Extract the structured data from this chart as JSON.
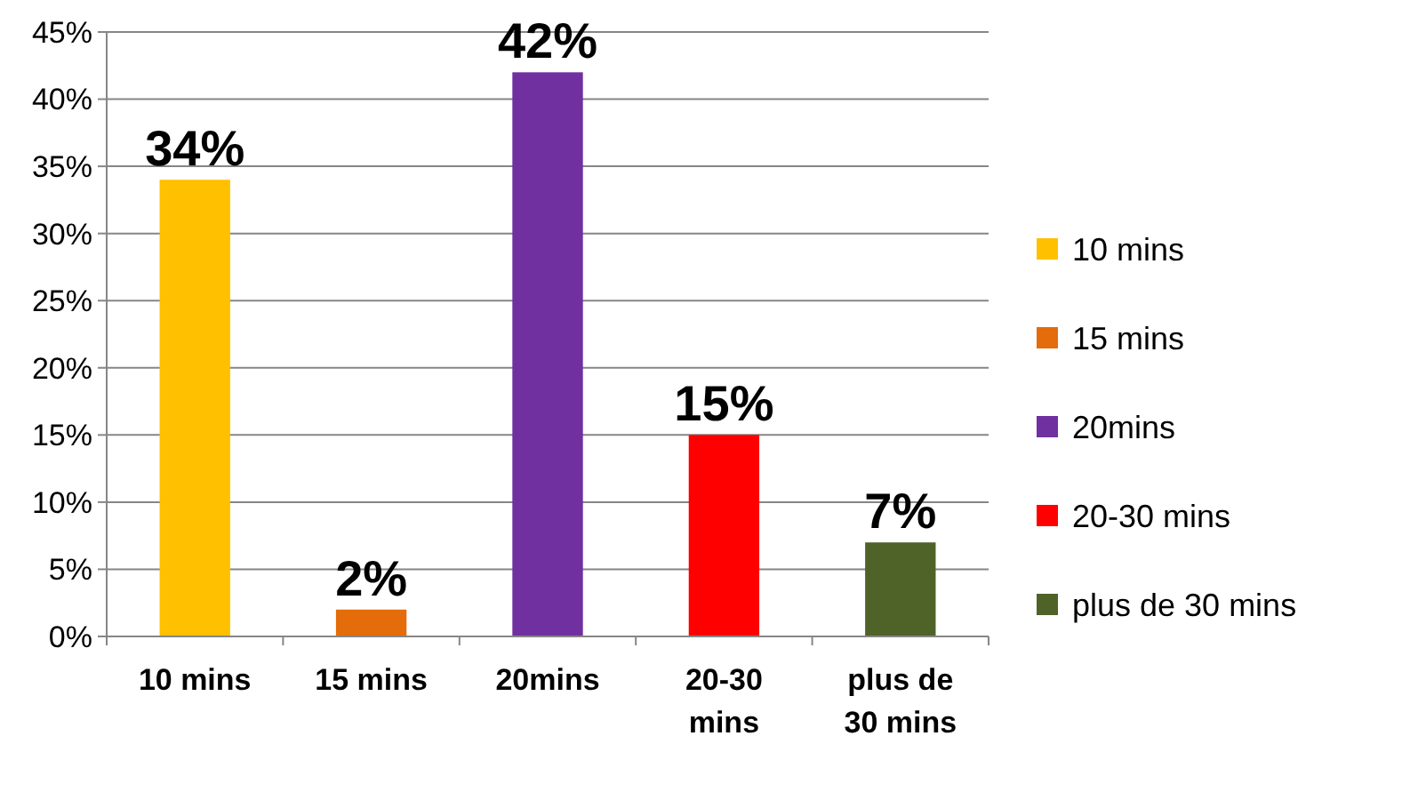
{
  "chart_data": {
    "type": "bar",
    "categories": [
      "10 mins",
      "15 mins",
      "20mins",
      "20-30 mins",
      "plus de 30 mins"
    ],
    "series": [
      {
        "name": "10 mins",
        "color": "#ffc000",
        "values": [
          34,
          null,
          null,
          null,
          null
        ],
        "value_labels": [
          "34%",
          null,
          null,
          null,
          null
        ]
      },
      {
        "name": "15 mins",
        "color": "#e46c0a",
        "values": [
          null,
          2,
          null,
          null,
          null
        ],
        "value_labels": [
          null,
          "2%",
          null,
          null,
          null
        ]
      },
      {
        "name": "20mins",
        "color": "#7030a0",
        "values": [
          null,
          null,
          42,
          null,
          null
        ],
        "value_labels": [
          null,
          null,
          "42%",
          null,
          null
        ]
      },
      {
        "name": "20-30 mins",
        "color": "#ff0000",
        "values": [
          null,
          null,
          null,
          15,
          null
        ],
        "value_labels": [
          null,
          null,
          null,
          "15%",
          null
        ]
      },
      {
        "name": "plus de 30 mins",
        "color": "#4f6228",
        "values": [
          null,
          null,
          null,
          null,
          7
        ],
        "value_labels": [
          null,
          null,
          null,
          null,
          "7%"
        ]
      }
    ],
    "ylim": [
      0,
      45
    ],
    "yticks": [
      {
        "value": 0,
        "label": "0%"
      },
      {
        "value": 5,
        "label": "5%"
      },
      {
        "value": 10,
        "label": "10%"
      },
      {
        "value": 15,
        "label": "15%"
      },
      {
        "value": 20,
        "label": "20%"
      },
      {
        "value": 25,
        "label": "25%"
      },
      {
        "value": 30,
        "label": "30%"
      },
      {
        "value": 35,
        "label": "35%"
      },
      {
        "value": 40,
        "label": "40%"
      },
      {
        "value": 45,
        "label": "45%"
      }
    ],
    "grid": "y",
    "legend": "right"
  }
}
